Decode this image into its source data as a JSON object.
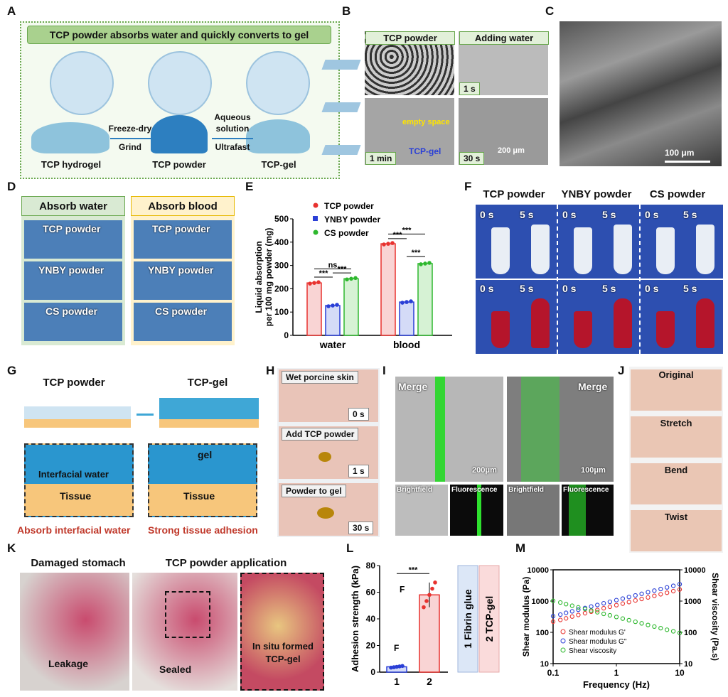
{
  "panel_letters": [
    "A",
    "B",
    "C",
    "D",
    "E",
    "F",
    "G",
    "H",
    "I",
    "J",
    "K",
    "L",
    "M"
  ],
  "A": {
    "title": "TCP powder absorbs water and quickly converts to gel",
    "labels": [
      "TCP hydrogel",
      "TCP powder",
      "TCP-gel"
    ],
    "arrow1_top": "Freeze-dry",
    "arrow1_bottom": "Grind",
    "arrow2_top": "Aqueous",
    "arrow2_mid": "solution",
    "arrow2_bottom": "Ultrafast"
  },
  "B": {
    "titles": [
      "TCP powder",
      "Adding water"
    ],
    "times": [
      "1 s",
      "1 min",
      "30 s"
    ],
    "empty_space": "empty space",
    "tcp_gel": "TCP-gel",
    "scale": "200 μm"
  },
  "C": {
    "scale": "100 μm"
  },
  "D": {
    "col_titles": [
      "Absorb water",
      "Absorb blood"
    ],
    "rows": [
      "TCP powder",
      "YNBY powder",
      "CS powder"
    ]
  },
  "F": {
    "titles": [
      "TCP powder",
      "YNBY powder",
      "CS powder"
    ],
    "times": [
      "0 s",
      "5 s"
    ]
  },
  "G": {
    "left_title": "TCP powder",
    "right_title": "TCP-gel",
    "interfacial": "Interfacial water",
    "tissue": "Tissue",
    "gel": "gel",
    "left_caption": "Absorb interfacial water",
    "right_caption": "Strong tissue adhesion"
  },
  "H": {
    "steps": [
      "Wet porcine skin",
      "Add TCP powder",
      "Powder to gel"
    ],
    "times": [
      "0 s",
      "1 s",
      "30 s"
    ]
  },
  "I": {
    "merge": "Merge",
    "scale1": "200μm",
    "scale2": "100μm",
    "sub": [
      "Brightfield",
      "Fluorescence",
      "Brightfield",
      "Fluorescence"
    ]
  },
  "J": {
    "steps": [
      "Original",
      "Stretch",
      "Bend",
      "Twist"
    ]
  },
  "K": {
    "titles": [
      "Damaged stomach",
      "TCP powder application"
    ],
    "leakage": "Leakage",
    "sealed": "Sealed",
    "insitu1": "In situ formed",
    "insitu2": "TCP-gel"
  },
  "chart_data": [
    {
      "panel": "E",
      "type": "bar",
      "ylabel": "Liquid absorption per 100 mg powder (mg)",
      "categories": [
        "water",
        "blood"
      ],
      "ylim": [
        0,
        500
      ],
      "yticks": [
        0,
        100,
        200,
        300,
        400,
        500
      ],
      "series": [
        {
          "name": "TCP powder",
          "color": "#e8322f",
          "fill": "#f9d4d4",
          "values": [
            225,
            393
          ]
        },
        {
          "name": "YNBY powder",
          "color": "#2a3fd6",
          "fill": "#d4dbf7",
          "values": [
            128,
            143
          ]
        },
        {
          "name": "CS powder",
          "color": "#2eb82e",
          "fill": "#d6f2d4",
          "values": [
            243,
            308
          ]
        }
      ],
      "significance": [
        "***",
        "***",
        "ns",
        "***",
        "***",
        "***"
      ]
    },
    {
      "panel": "L",
      "type": "bar",
      "ylabel": "Adhesion strength (kPa)",
      "categories": [
        "1",
        "2"
      ],
      "ylim": [
        0,
        80
      ],
      "yticks": [
        0,
        20,
        40,
        60,
        80
      ],
      "values": [
        4,
        58
      ],
      "colors": [
        "#2a3fd6",
        "#e8322f"
      ],
      "significance": "***",
      "legend": [
        "1 Fibrin glue",
        "2 TCP-gel"
      ],
      "force_label": "F"
    },
    {
      "panel": "M",
      "type": "scatter",
      "xlabel": "Frequency (Hz)",
      "ylabel": "Shear modulus (Pa)",
      "ylabel_right": "Shear viscosity (Pa.s)",
      "x_scale": "log",
      "y_scale": "log",
      "xticks": [
        0.1,
        1,
        10
      ],
      "xtick_labels": [
        "0.1",
        "1",
        "10"
      ],
      "yticks": [
        10,
        100,
        1000,
        10000
      ],
      "ytick_labels": [
        "10",
        "100",
        "1000",
        "10000"
      ],
      "x": [
        0.1,
        0.13,
        0.16,
        0.2,
        0.25,
        0.32,
        0.4,
        0.5,
        0.63,
        0.79,
        1.0,
        1.26,
        1.58,
        2.0,
        2.51,
        3.16,
        3.98,
        5.01,
        6.31,
        7.94,
        10
      ],
      "series": [
        {
          "name": "Shear modulus G'",
          "color": "#e8322f",
          "values": [
            220,
            250,
            280,
            320,
            360,
            410,
            460,
            520,
            590,
            660,
            740,
            830,
            930,
            1050,
            1170,
            1310,
            1470,
            1650,
            1850,
            2080,
            2350
          ]
        },
        {
          "name": "Shear modulus G\"",
          "color": "#2a3fd6",
          "values": [
            330,
            370,
            420,
            470,
            530,
            600,
            670,
            750,
            850,
            950,
            1070,
            1200,
            1350,
            1520,
            1710,
            1920,
            2160,
            2430,
            2740,
            3080,
            3460
          ]
        },
        {
          "name": "Shear viscosity",
          "color": "#2eb82e",
          "values": [
            1020,
            900,
            800,
            710,
            630,
            560,
            500,
            440,
            390,
            350,
            310,
            275,
            245,
            218,
            194,
            172,
            153,
            136,
            121,
            108,
            96
          ]
        }
      ]
    }
  ]
}
